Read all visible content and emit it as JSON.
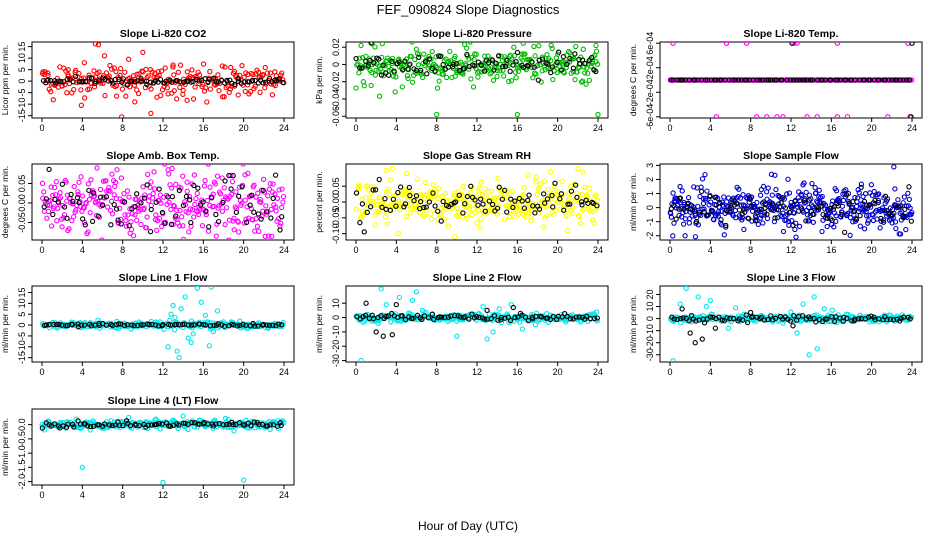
{
  "figure": {
    "title": "FEF_090824  Slope Diagnostics",
    "xlabel": "Hour of Day (UTC)"
  },
  "chart_data": [
    {
      "type": "scatter",
      "title": "Slope Li-820 CO2",
      "ylabel": "Licor ppm per min.",
      "xlim": [
        0,
        24
      ],
      "ylim": [
        -16,
        17
      ],
      "xticks": [
        0,
        4,
        8,
        12,
        16,
        20,
        24
      ],
      "yticks": [
        -15,
        -10,
        -5,
        0,
        5,
        10,
        15
      ],
      "series": [
        {
          "color": "#ff0000",
          "center": 0,
          "spread": 3.5,
          "count": 240,
          "points": [
            [
              5.3,
              16.2
            ],
            [
              5.6,
              15.8
            ],
            [
              7.9,
              -15.5
            ],
            [
              10.0,
              12.5
            ],
            [
              10.8,
              -14.0
            ],
            [
              3.9,
              -10.5
            ],
            [
              6.2,
              11.0
            ],
            [
              8.6,
              9.5
            ],
            [
              11.4,
              -7.0
            ],
            [
              13.0,
              7.0
            ],
            [
              4.2,
              8.0
            ],
            [
              9.2,
              -9.0
            ],
            [
              2.6,
              5.0
            ],
            [
              7.4,
              -6.5
            ],
            [
              12.5,
              -5.5
            ],
            [
              14.0,
              -4.0
            ]
          ]
        },
        {
          "color": "#000000",
          "center": 0,
          "spread": 0.7,
          "count": 90
        }
      ]
    },
    {
      "type": "scatter",
      "title": "Slope Li-820 Pressure",
      "ylabel": "kPa per min.",
      "xlim": [
        0,
        24
      ],
      "ylim": [
        -0.062,
        0.026
      ],
      "xticks": [
        0,
        4,
        8,
        12,
        16,
        20,
        24
      ],
      "yticks": [
        -0.06,
        -0.04,
        -0.02,
        0.0,
        0.02
      ],
      "series": [
        {
          "color": "#00bb00",
          "center": 0,
          "spread": 0.012,
          "count": 300,
          "points": [
            [
              8.0,
              -0.058
            ],
            [
              16.0,
              -0.058
            ],
            [
              24.0,
              -0.058
            ],
            [
              0.5,
              0.022
            ],
            [
              23.8,
              0.022
            ],
            [
              1.6,
              0.024
            ]
          ]
        },
        {
          "color": "#000000",
          "center": 0,
          "spread": 0.006,
          "count": 90,
          "points": [
            [
              1.5,
              0.025
            ]
          ]
        }
      ]
    },
    {
      "type": "scatter",
      "title": "Slope Li-820 Temp.",
      "ylabel": "degrees C per min.",
      "xlim": [
        0,
        24
      ],
      "ylim": [
        -0.00062,
        0.00062
      ],
      "xticks": [
        0,
        4,
        8,
        12,
        16,
        20,
        24
      ],
      "yticks": [
        -0.0006,
        -0.0002,
        0.0002,
        0.0006
      ],
      "ytick_labels": [
        "-6e-04",
        "-2e-04",
        "2e-04",
        "6e-04"
      ],
      "series": [
        {
          "color": "#ff00ff",
          "center": 0,
          "spread": 0,
          "count": 240,
          "points": [
            [
              5.6,
              0.0006
            ],
            [
              7.6,
              0.0006
            ],
            [
              12.3,
              0.0006
            ],
            [
              12.6,
              0.0006
            ],
            [
              16.6,
              0.0006
            ],
            [
              23.6,
              0.0006
            ],
            [
              0.3,
              0.0006
            ],
            [
              4.6,
              -0.0006
            ],
            [
              8.6,
              -0.0006
            ],
            [
              9.6,
              -0.0006
            ],
            [
              10.6,
              -0.0006
            ],
            [
              11.2,
              -0.0006
            ],
            [
              13.6,
              -0.0006
            ],
            [
              14.6,
              -0.0006
            ],
            [
              16.6,
              -0.0006
            ],
            [
              17.6,
              -0.0006
            ],
            [
              21.6,
              -0.0006
            ],
            [
              23.8,
              -0.0006
            ]
          ]
        },
        {
          "color": "#000000",
          "center": 0,
          "spread": 0,
          "count": 80,
          "points": [
            [
              12.1,
              0.0006
            ],
            [
              24.0,
              0.0006
            ],
            [
              23.9,
              -0.0006
            ]
          ]
        }
      ]
    },
    {
      "type": "scatter",
      "title": "Slope Amb. Box Temp.",
      "ylabel": "degrees C per min.",
      "xlim": [
        0,
        24
      ],
      "ylim": [
        -0.095,
        0.1
      ],
      "xticks": [
        0,
        4,
        8,
        12,
        16,
        20,
        24
      ],
      "yticks": [
        -0.05,
        0.0,
        0.05
      ],
      "ytick_labels": [
        "-0.05",
        "0.00",
        "0.05"
      ],
      "series": [
        {
          "color": "#ff00ff",
          "center": 0,
          "spread": 0.04,
          "count": 330
        },
        {
          "color": "#000000",
          "center": 0,
          "spread": 0.035,
          "count": 80
        }
      ]
    },
    {
      "type": "scatter",
      "title": "Slope Gas Stream RH",
      "ylabel": "percent per min.",
      "xlim": [
        0,
        24
      ],
      "ylim": [
        -0.12,
        0.12
      ],
      "xticks": [
        0,
        4,
        8,
        12,
        16,
        20,
        24
      ],
      "yticks": [
        -0.1,
        -0.05,
        0.0,
        0.05
      ],
      "ytick_labels": [
        "-0.10",
        "-0.05",
        "0.00",
        "0.05"
      ],
      "series": [
        {
          "color": "#ffff00",
          "center": 0,
          "spread": 0.035,
          "count": 340,
          "points": [
            [
              3.0,
              0.1
            ],
            [
              5.0,
              0.09
            ],
            [
              4.2,
              -0.1
            ],
            [
              9.8,
              -0.11
            ],
            [
              19.3,
              0.095
            ],
            [
              21.0,
              -0.09
            ]
          ]
        },
        {
          "color": "#000000",
          "center": 0,
          "spread": 0.025,
          "count": 90
        }
      ]
    },
    {
      "type": "scatter",
      "title": "Slope Sample Flow",
      "ylabel": "ml/min per min.",
      "xlim": [
        0,
        24
      ],
      "ylim": [
        -2.3,
        3.1
      ],
      "xticks": [
        0,
        4,
        8,
        12,
        16,
        20,
        24
      ],
      "yticks": [
        -2,
        -1,
        0,
        1,
        2,
        3
      ],
      "series": [
        {
          "color": "#0000cc",
          "center": 0,
          "spread": 0.75,
          "count": 420,
          "points": [
            [
              22.2,
              2.9
            ],
            [
              10.4,
              2.3
            ],
            [
              1.0,
              1.5
            ],
            [
              12.5,
              -2.1
            ],
            [
              1.5,
              -2.0
            ],
            [
              19.3,
              -1.5
            ]
          ]
        },
        {
          "color": "#000000",
          "center": 0,
          "spread": 0.6,
          "count": 95
        }
      ]
    },
    {
      "type": "scatter",
      "title": "Slope Line 1 Flow",
      "ylabel": "ml/min per min.",
      "xlim": [
        0,
        24
      ],
      "ylim": [
        -17,
        18
      ],
      "xticks": [
        0,
        4,
        8,
        12,
        16,
        20,
        24
      ],
      "yticks": [
        -15,
        -10,
        -5,
        0,
        5,
        10,
        15
      ],
      "series": [
        {
          "color": "#00e5ee",
          "center": 0,
          "spread": 0.8,
          "count": 260,
          "points": [
            [
              15.4,
              17.0
            ],
            [
              16.8,
              17.5
            ],
            [
              13.6,
              -15.0
            ],
            [
              13.4,
              -12.0
            ],
            [
              14.2,
              13.0
            ],
            [
              12.5,
              -10.0
            ],
            [
              13.0,
              9.0
            ],
            [
              14.8,
              -8.0
            ],
            [
              15.8,
              10.5
            ],
            [
              16.6,
              -9.5
            ],
            [
              17.4,
              6.5
            ],
            [
              13.8,
              7.5
            ],
            [
              12.8,
              5.0
            ],
            [
              14.5,
              -6.0
            ],
            [
              16.2,
              4.5
            ],
            [
              15.0,
              -4.0
            ],
            [
              13.2,
              3.5
            ],
            [
              17.0,
              -3.0
            ]
          ]
        },
        {
          "color": "#000000",
          "center": 0,
          "spread": 0.3,
          "count": 80
        }
      ]
    },
    {
      "type": "scatter",
      "title": "Slope Line 2 Flow",
      "ylabel": "ml/min per min.",
      "xlim": [
        0,
        24
      ],
      "ylim": [
        -31,
        22
      ],
      "xticks": [
        0,
        4,
        8,
        12,
        16,
        20,
        24
      ],
      "yticks": [
        -30,
        -20,
        -10,
        0,
        10
      ],
      "series": [
        {
          "color": "#00e5ee",
          "center": 0,
          "spread": 1.5,
          "count": 270,
          "points": [
            [
              0.5,
              -30.0
            ],
            [
              2.5,
              20.0
            ],
            [
              6.0,
              18.0
            ],
            [
              5.6,
              12.0
            ],
            [
              3.0,
              9.0
            ],
            [
              4.3,
              14.0
            ],
            [
              10.0,
              -13.0
            ],
            [
              13.0,
              -15.0
            ],
            [
              13.6,
              -10.0
            ],
            [
              14.2,
              6.0
            ],
            [
              15.4,
              9.0
            ],
            [
              16.5,
              -8.0
            ],
            [
              12.6,
              7.5
            ],
            [
              2.2,
              -4.0
            ],
            [
              17.8,
              -5.0
            ],
            [
              6.6,
              5.0
            ]
          ]
        },
        {
          "color": "#000000",
          "center": 0,
          "spread": 1.0,
          "count": 85,
          "points": [
            [
              1.0,
              10.0
            ],
            [
              2.0,
              -10.0
            ],
            [
              2.7,
              -13.0
            ],
            [
              3.6,
              -12.0
            ],
            [
              4.0,
              9.0
            ],
            [
              15.6,
              7.0
            ],
            [
              13.0,
              5.0
            ]
          ]
        }
      ]
    },
    {
      "type": "scatter",
      "title": "Slope Line 3 Flow",
      "ylabel": "ml/min per min.",
      "xlim": [
        0,
        24
      ],
      "ylim": [
        -36,
        27
      ],
      "xticks": [
        0,
        4,
        8,
        12,
        16,
        20,
        24
      ],
      "yticks": [
        -30,
        -20,
        -10,
        0,
        10,
        20
      ],
      "series": [
        {
          "color": "#00e5ee",
          "center": 0,
          "spread": 1.5,
          "count": 260,
          "points": [
            [
              0.3,
              -35.0
            ],
            [
              1.6,
              25.0
            ],
            [
              4.0,
              15.0
            ],
            [
              3.6,
              10.0
            ],
            [
              2.8,
              18.0
            ],
            [
              13.8,
              -30.0
            ],
            [
              14.6,
              -25.0
            ],
            [
              14.3,
              18.0
            ],
            [
              13.2,
              12.0
            ],
            [
              15.3,
              8.0
            ],
            [
              12.6,
              -12.0
            ],
            [
              16.1,
              7.0
            ],
            [
              1.0,
              12.0
            ],
            [
              5.8,
              -8.0
            ],
            [
              6.5,
              9.0
            ]
          ]
        },
        {
          "color": "#000000",
          "center": 0,
          "spread": 1.2,
          "count": 85,
          "points": [
            [
              2.5,
              -20.0
            ],
            [
              3.2,
              -17.0
            ],
            [
              2.0,
              -12.0
            ],
            [
              1.2,
              8.0
            ],
            [
              4.5,
              -8.0
            ],
            [
              8.0,
              5.0
            ],
            [
              12.2,
              -6.0
            ]
          ]
        }
      ]
    },
    {
      "type": "scatter",
      "title": "Slope Line 4 (LT) Flow",
      "ylabel": "ml/min per min.",
      "xlim": [
        0,
        24
      ],
      "ylim": [
        -2.12,
        0.55
      ],
      "xticks": [
        0,
        4,
        8,
        12,
        16,
        20,
        24
      ],
      "yticks": [
        -2.0,
        -1.5,
        -1.0,
        -0.5,
        0.0
      ],
      "ytick_labels": [
        "-2.0",
        "-1.5",
        "-1.0",
        "-0.5",
        "0.0"
      ],
      "series": [
        {
          "color": "#00e5ee",
          "center": 0,
          "spread": 0.08,
          "count": 250,
          "points": [
            [
              4.0,
              -1.5
            ],
            [
              12.0,
              -2.03
            ],
            [
              20.0,
              -1.95
            ],
            [
              14.0,
              0.3
            ],
            [
              8.6,
              0.25
            ],
            [
              18.2,
              0.22
            ]
          ]
        },
        {
          "color": "#000000",
          "center": 0,
          "spread": 0.05,
          "count": 85
        }
      ]
    }
  ]
}
